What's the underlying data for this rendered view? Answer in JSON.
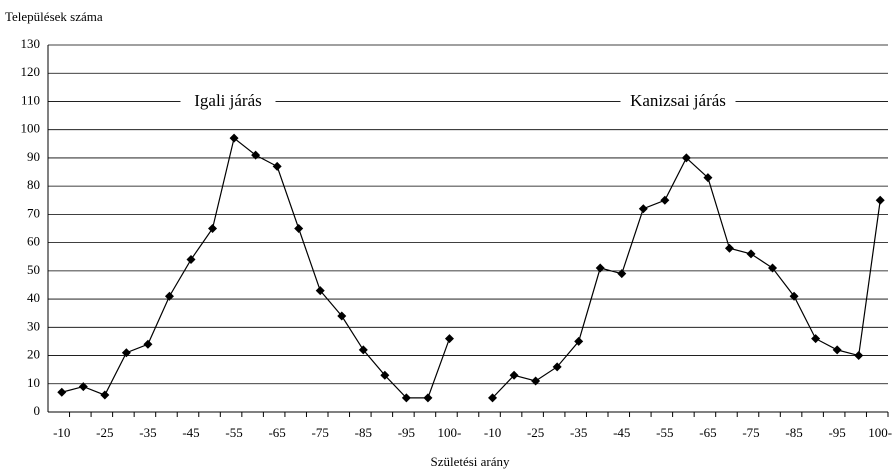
{
  "chart_data": {
    "type": "line",
    "y_axis_label": "Települések száma",
    "x_axis_label": "Születési arány",
    "annotations": [
      "Igali járás",
      "Kanizsai járás"
    ],
    "categories": [
      "-10",
      null,
      "-25",
      null,
      "-35",
      null,
      "-45",
      null,
      "-55",
      null,
      "-65",
      null,
      "-75",
      null,
      "-85",
      null,
      "-95",
      null,
      "100-",
      null,
      "-10",
      null,
      "-25",
      null,
      "-35",
      null,
      "-45",
      null,
      "-55",
      null,
      "-65",
      null,
      "-75",
      null,
      "-85",
      null,
      "-95",
      null,
      "100-"
    ],
    "series": [
      {
        "color": "#000000",
        "values": [
          7,
          9,
          6,
          21,
          24,
          41,
          54,
          65,
          97,
          91,
          87,
          65,
          43,
          34,
          22,
          13,
          5,
          5,
          26,
          null,
          5,
          13,
          11,
          16,
          25,
          51,
          49,
          72,
          75,
          90,
          83,
          58,
          56,
          51,
          41,
          26,
          22,
          20,
          75
        ]
      }
    ],
    "ylim": [
      0,
      130
    ],
    "yticks": [
      0,
      10,
      20,
      30,
      40,
      50,
      60,
      70,
      80,
      90,
      100,
      110,
      120,
      130
    ],
    "grid": true
  }
}
